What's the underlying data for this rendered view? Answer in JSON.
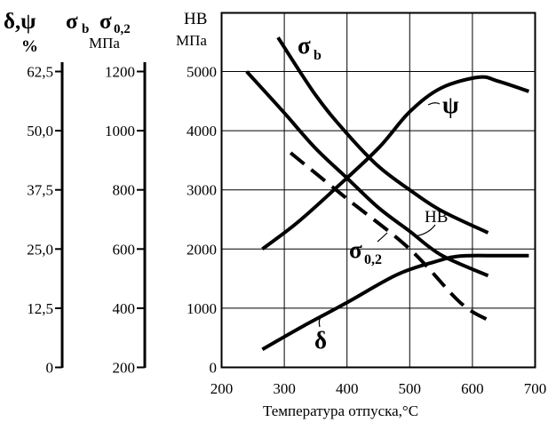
{
  "chart_data": {
    "type": "line",
    "xlabel": "Температура отпуска,°С",
    "x_ticks": [
      "200",
      "300",
      "400",
      "500",
      "600",
      "700"
    ],
    "xlim": [
      200,
      700
    ],
    "axes": {
      "hb": {
        "title": "HB",
        "unit": "МПа",
        "ylim": [
          0,
          5000
        ],
        "ticks": [
          "0",
          "1000",
          "2000",
          "3000",
          "4000",
          "5000"
        ]
      },
      "sigma": {
        "title_main": "σ",
        "title_sub_b": "b",
        "title_sub_02": "0,2",
        "unit": "МПа",
        "ylim": [
          200,
          1200
        ],
        "ticks": [
          "200",
          "400",
          "600",
          "800",
          "1000",
          "1200"
        ]
      },
      "delta_psi": {
        "title": "δ,ψ",
        "unit": "%",
        "ylim": [
          0,
          62.5
        ],
        "ticks": [
          "0",
          "12,5",
          "25,0",
          "37,5",
          "50,0",
          "62,5"
        ]
      }
    },
    "series": [
      {
        "name": "σb",
        "axis": "sigma",
        "style": "solid",
        "x": [
          290,
          350,
          400,
          450,
          500,
          550,
          625
        ],
        "y": [
          1315,
          1120,
          990,
          880,
          800,
          730,
          655
        ]
      },
      {
        "name": "σ0,2",
        "axis": "sigma",
        "style": "dashed",
        "x": [
          310,
          400,
          500,
          580,
          625
        ],
        "y": [
          925,
          770,
          600,
          420,
          360
        ]
      },
      {
        "name": "HB",
        "axis": "hb",
        "style": "solid",
        "x": [
          240,
          300,
          350,
          400,
          450,
          500,
          550,
          625
        ],
        "y": [
          5000,
          4300,
          3700,
          3200,
          2700,
          2300,
          1900,
          1550
        ]
      },
      {
        "name": "ψ",
        "axis": "delta_psi",
        "style": "solid",
        "x": [
          265,
          320,
          380,
          450,
          500,
          550,
          610,
          640,
          690
        ],
        "y": [
          25,
          30.5,
          37.6,
          46.3,
          54,
          59,
          61.3,
          60.5,
          58.3
        ]
      },
      {
        "name": "δ",
        "axis": "delta_psi",
        "style": "solid",
        "x": [
          265,
          330,
          400,
          480,
          540,
          580,
          640,
          690
        ],
        "y": [
          3.8,
          8.7,
          13.7,
          19.6,
          22.3,
          23.5,
          23.6,
          23.6
        ]
      }
    ],
    "curve_labels": {
      "sigma_b": {
        "main": "σ",
        "sub": "b"
      },
      "psi": "ψ",
      "hb": "HB",
      "sigma_02": {
        "main": "σ",
        "sub": "0,2"
      },
      "delta": "δ"
    },
    "grid": true
  }
}
